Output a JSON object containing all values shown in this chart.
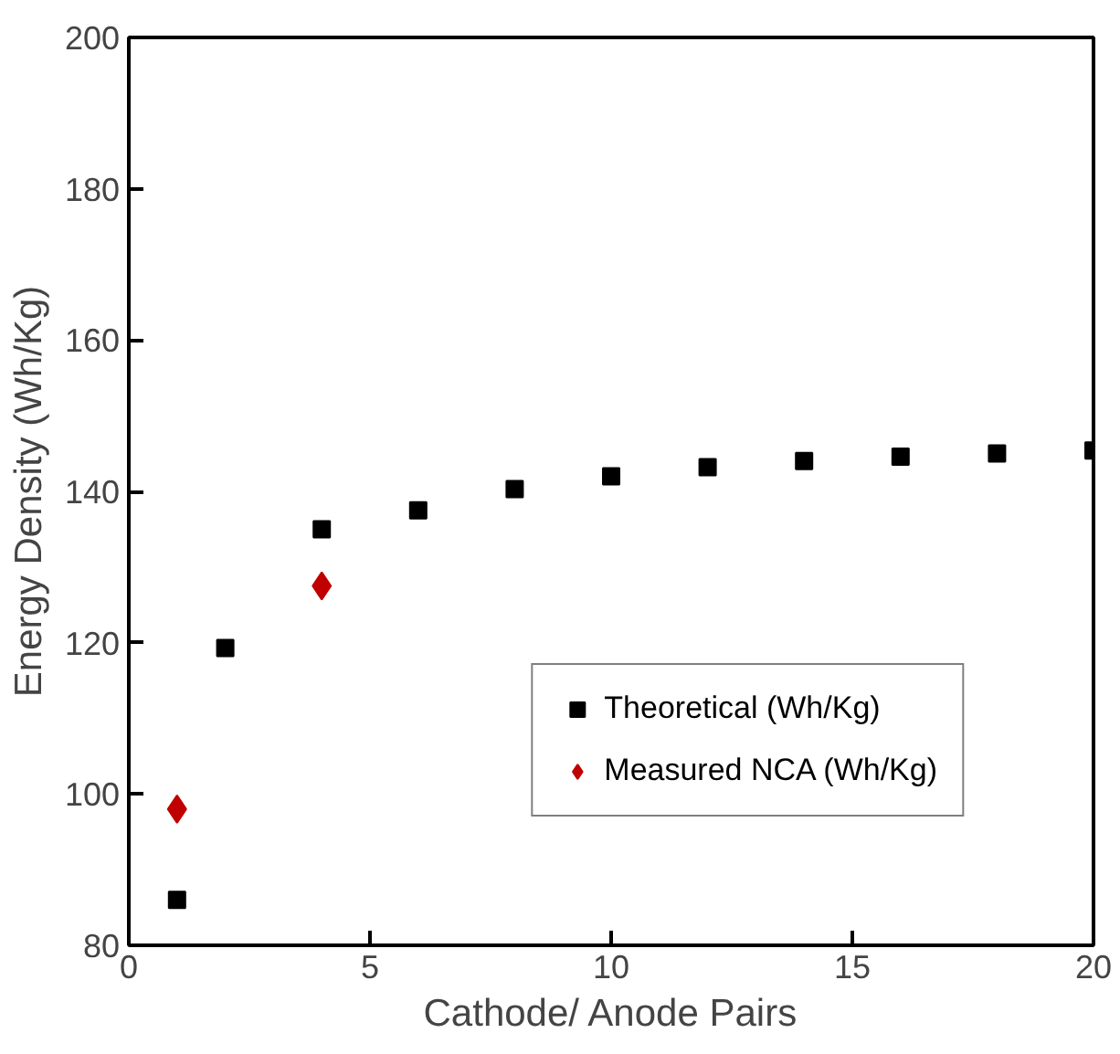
{
  "chart_data": {
    "type": "scatter",
    "xlabel": "Cathode/ Anode Pairs",
    "ylabel": "Energy Density (Wh/Kg)",
    "xlim": [
      0,
      20
    ],
    "xticks": [
      0,
      5,
      10,
      15,
      20
    ],
    "ylim": [
      80,
      200
    ],
    "yticks": [
      80,
      100,
      120,
      140,
      160,
      180,
      200
    ],
    "grid": false,
    "legend": "bottom right",
    "series": [
      {
        "name": "Theoretical (Wh/Kg)",
        "color": "#000000",
        "marker": "square",
        "x": [
          1,
          2,
          4,
          6,
          8,
          10,
          12,
          14,
          16,
          18,
          20
        ],
        "values": [
          86,
          119.3,
          135,
          137.5,
          140.3,
          142,
          143.2,
          144,
          144.6,
          145,
          145.4
        ]
      },
      {
        "name": "Measured NCA (Wh/Kg)",
        "color": "#c00000",
        "marker": "diamond",
        "x": [
          1,
          4
        ],
        "values": [
          98,
          127.5
        ]
      }
    ]
  }
}
